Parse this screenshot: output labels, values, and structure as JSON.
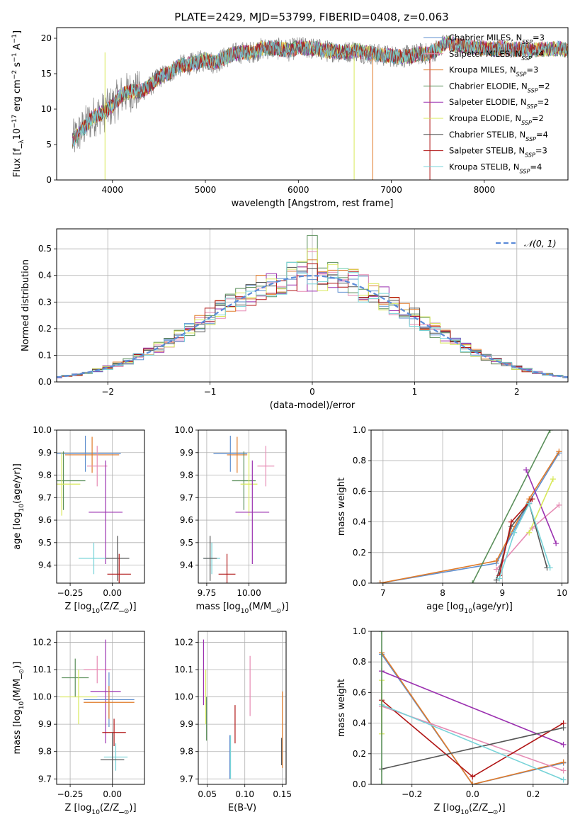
{
  "figure_title": "PLATE=2429, MJD=53799, FIBERID=0408, z=0.063",
  "colors": {
    "Chabrier MILES": "#5f8fcf",
    "Salpeter MILES": "#e68bb4",
    "Kroupa MILES": "#e07b2a",
    "Chabrier ELODIE": "#5a8f5a",
    "Salpeter ELODIE": "#9b30b0",
    "Kroupa ELODIE": "#d8e85a",
    "Chabrier STELIB": "#555555",
    "Salpeter STELIB": "#b01515",
    "Kroupa STELIB": "#77d3d8",
    "data": "#808080",
    "normal": "#5b8bd8"
  },
  "chart_data": [
    {
      "id": "spectrum",
      "type": "line",
      "title": "PLATE=2429, MJD=53799, FIBERID=0408, z=0.063",
      "xlabel": "wavelength [Angstrom, rest frame]",
      "ylabel": "Flux [f$_\\lambda$10$^{-17}$ erg cm$^{-2}$ s$^{-1}$ A$^{-1}$]",
      "xlim": [
        3400,
        8900
      ],
      "ylim": [
        0,
        21.5
      ],
      "xticks": [
        4000,
        5000,
        6000,
        7000,
        8000
      ],
      "yticks": [
        0,
        5,
        10,
        15,
        20
      ],
      "legend_position": "right",
      "legend": [
        {
          "model": "Chabrier MILES",
          "label": "Chabrier MILES, N",
          "sub": "SSP",
          "n": "=3"
        },
        {
          "model": "Salpeter MILES",
          "label": "Salpeter MILES, N",
          "sub": "SSP",
          "n": "=4"
        },
        {
          "model": "Kroupa MILES",
          "label": "Kroupa MILES, N",
          "sub": "SSP",
          "n": "=3"
        },
        {
          "model": "Chabrier ELODIE",
          "label": "Chabrier ELODIE, N",
          "sub": "SSP",
          "n": "=2"
        },
        {
          "model": "Salpeter ELODIE",
          "label": "Salpeter ELODIE, N",
          "sub": "SSP",
          "n": "=2"
        },
        {
          "model": "Kroupa ELODIE",
          "label": "Kroupa ELODIE, N",
          "sub": "SSP",
          "n": "=2"
        },
        {
          "model": "Chabrier STELIB",
          "label": "Chabrier STELIB, N",
          "sub": "SSP",
          "n": "=4"
        },
        {
          "model": "Salpeter STELIB",
          "label": "Salpeter STELIB, N",
          "sub": "SSP",
          "n": "=3"
        },
        {
          "model": "Kroupa STELIB",
          "label": "Kroupa STELIB, N",
          "sub": "SSP",
          "n": "=4"
        }
      ],
      "continuum": {
        "x": [
          3570,
          3700,
          3800,
          3900,
          4000,
          4100,
          4200,
          4300,
          4400,
          4500,
          4600,
          4700,
          4800,
          4900,
          5000,
          5100,
          5200,
          5300,
          5400,
          5500,
          5600,
          5700,
          5800,
          5900,
          6000,
          6100,
          6200,
          6300,
          6400,
          6500,
          6600,
          6700,
          6800,
          6900,
          7000,
          7100,
          7200,
          7300,
          7400,
          7500,
          7600,
          7700,
          7800,
          7900,
          8000,
          8100,
          8200,
          8300,
          8400,
          8500,
          8600,
          8700,
          8800,
          8900
        ],
        "y": [
          5.5,
          7.5,
          9.0,
          9.5,
          10.5,
          12.0,
          12.5,
          12.5,
          13.2,
          14.5,
          15.0,
          16.0,
          16.3,
          16.5,
          17.0,
          16.5,
          17.2,
          17.8,
          18.0,
          18.0,
          18.5,
          18.6,
          18.5,
          18.3,
          18.7,
          18.6,
          18.5,
          18.2,
          18.2,
          18.0,
          18.3,
          18.0,
          17.8,
          17.6,
          17.5,
          17.4,
          17.5,
          17.8,
          17.8,
          18.5,
          19.5,
          19.0,
          18.8,
          18.6,
          18.6,
          18.5,
          18.6,
          18.4,
          18.5,
          18.3,
          18.5,
          18.4,
          18.6,
          18.3
        ]
      }
    },
    {
      "id": "residuals",
      "type": "line",
      "xlabel": "(data-model)/error",
      "ylabel": "Normed distribution",
      "xlim": [
        -2.5,
        2.5
      ],
      "ylim": [
        0,
        0.575
      ],
      "xticks": [
        -2,
        -1,
        0,
        1,
        2
      ],
      "yticks": [
        0.0,
        0.1,
        0.2,
        0.3,
        0.4,
        0.5
      ],
      "grid": true,
      "legend_position": "top-right",
      "normal_label": "𝒩(0, 1)",
      "bin_width": 0.1,
      "peak_values": {
        "Chabrier ELODIE": 0.55,
        "Kroupa ELODIE": 0.5,
        "Salpeter MILES": 0.49
      }
    },
    {
      "id": "age-Z",
      "type": "scatter",
      "xlabel": "Z [log$_{10}$(Z/Z$_\\odot$)]",
      "ylabel": "age  [log$_{10}$(age/yr)]",
      "xlim": [
        -0.33,
        0.19
      ],
      "ylim": [
        9.32,
        10.0
      ],
      "xticks": [
        -0.25,
        0.0
      ],
      "yticks": [
        9.4,
        9.5,
        9.6,
        9.7,
        9.8,
        9.9,
        10.0
      ],
      "grid": true,
      "points": [
        {
          "model": "Chabrier MILES",
          "x": -0.16,
          "y": 9.895,
          "xerr": 0.21,
          "yerr": 0.08
        },
        {
          "model": "Kroupa MILES",
          "x": -0.12,
          "y": 9.89,
          "xerr": 0.16,
          "yerr": 0.08
        },
        {
          "model": "Salpeter MILES",
          "x": -0.09,
          "y": 9.84,
          "xerr": 0.06,
          "yerr": 0.09
        },
        {
          "model": "Chabrier ELODIE",
          "x": -0.29,
          "y": 9.775,
          "xerr": 0.13,
          "yerr": 0.13
        },
        {
          "model": "Kroupa ELODIE",
          "x": -0.3,
          "y": 9.76,
          "xerr": 0.11,
          "yerr": 0.14
        },
        {
          "model": "Salpeter ELODIE",
          "x": -0.04,
          "y": 9.635,
          "xerr": 0.1,
          "yerr": 0.23
        },
        {
          "model": "Kroupa STELIB",
          "x": -0.11,
          "y": 9.43,
          "xerr": 0.09,
          "yerr": 0.07
        },
        {
          "model": "Chabrier STELIB",
          "x": 0.03,
          "y": 9.43,
          "xerr": 0.07,
          "yerr": 0.1
        },
        {
          "model": "Salpeter STELIB",
          "x": 0.04,
          "y": 9.36,
          "xerr": 0.07,
          "yerr": 0.09
        }
      ]
    },
    {
      "id": "age-mass",
      "type": "scatter",
      "xlabel": "mass [log$_{10}$(M/M$_\\odot$)]",
      "ylabel": "",
      "xlim": [
        9.7,
        10.22
      ],
      "ylim": [
        9.32,
        10.0
      ],
      "xticks": [
        9.75,
        10.0
      ],
      "yticks": [
        9.4,
        9.5,
        9.6,
        9.7,
        9.8,
        9.9,
        10.0
      ],
      "grid": true,
      "points": [
        {
          "model": "Chabrier MILES",
          "x": 9.89,
          "y": 9.895,
          "xerr": 0.1,
          "yerr": 0.08
        },
        {
          "model": "Kroupa MILES",
          "x": 9.93,
          "y": 9.89,
          "xerr": 0.06,
          "yerr": 0.08
        },
        {
          "model": "Salpeter MILES",
          "x": 10.1,
          "y": 9.84,
          "xerr": 0.05,
          "yerr": 0.09
        },
        {
          "model": "Chabrier ELODIE",
          "x": 9.97,
          "y": 9.775,
          "xerr": 0.07,
          "yerr": 0.13
        },
        {
          "model": "Kroupa ELODIE",
          "x": 10.0,
          "y": 9.76,
          "xerr": 0.05,
          "yerr": 0.14
        },
        {
          "model": "Salpeter ELODIE",
          "x": 10.02,
          "y": 9.635,
          "xerr": 0.1,
          "yerr": 0.23
        },
        {
          "model": "Kroupa STELIB",
          "x": 9.78,
          "y": 9.43,
          "xerr": 0.05,
          "yerr": 0.07
        },
        {
          "model": "Chabrier STELIB",
          "x": 9.77,
          "y": 9.43,
          "xerr": 0.04,
          "yerr": 0.1
        },
        {
          "model": "Salpeter STELIB",
          "x": 9.87,
          "y": 9.36,
          "xerr": 0.05,
          "yerr": 0.09
        }
      ]
    },
    {
      "id": "weight-age",
      "type": "line",
      "xlabel": "age  [log$_{10}$(age/yr)]",
      "ylabel": "mass weight",
      "xlim": [
        6.8,
        10.1
      ],
      "ylim": [
        0,
        1
      ],
      "xticks": [
        7,
        8,
        9,
        10
      ],
      "yticks": [
        0.0,
        0.2,
        0.4,
        0.6,
        0.8,
        1.0
      ],
      "grid": true,
      "series": [
        {
          "model": "Chabrier MILES",
          "x": [
            6.95,
            8.9,
            9.45,
            9.95
          ],
          "y": [
            0.0,
            0.13,
            0.53,
            0.85
          ]
        },
        {
          "model": "Kroupa MILES",
          "x": [
            6.95,
            8.9,
            9.45,
            9.95
          ],
          "y": [
            0.0,
            0.145,
            0.55,
            0.86
          ]
        },
        {
          "model": "Salpeter MILES",
          "x": [
            8.9,
            9.5,
            9.95
          ],
          "y": [
            0.09,
            0.36,
            0.51
          ]
        },
        {
          "model": "Chabrier ELODIE",
          "x": [
            8.5,
            9.8
          ],
          "y": [
            0.0,
            1.0
          ]
        },
        {
          "model": "Salpeter ELODIE",
          "x": [
            9.4,
            9.9
          ],
          "y": [
            0.74,
            0.26
          ]
        },
        {
          "model": "Kroupa ELODIE",
          "x": [
            9.45,
            9.85
          ],
          "y": [
            0.33,
            0.68
          ]
        },
        {
          "model": "Chabrier STELIB",
          "x": [
            8.9,
            9.15,
            9.45,
            9.75
          ],
          "y": [
            0.02,
            0.37,
            0.52,
            0.1
          ]
        },
        {
          "model": "Salpeter STELIB",
          "x": [
            8.95,
            9.15,
            9.5
          ],
          "y": [
            0.05,
            0.4,
            0.55
          ]
        },
        {
          "model": "Kroupa STELIB",
          "x": [
            8.95,
            9.2,
            9.45,
            9.8
          ],
          "y": [
            0.03,
            0.33,
            0.52,
            0.1
          ]
        }
      ]
    },
    {
      "id": "mass-Z",
      "type": "scatter",
      "xlabel": "Z [log$_{10}$(Z/Z$_\\odot$)]",
      "ylabel": "mass [log$_{10}$(M/M$_\\odot$)]",
      "xlim": [
        -0.33,
        0.19
      ],
      "ylim": [
        9.68,
        10.24
      ],
      "xticks": [
        -0.25,
        0.0
      ],
      "yticks": [
        9.7,
        9.8,
        9.9,
        10.0,
        10.1,
        10.2
      ],
      "grid": true,
      "points": [
        {
          "model": "Salpeter MILES",
          "x": -0.09,
          "y": 10.1,
          "xerr": 0.08,
          "yerr": 0.05
        },
        {
          "model": "Salpeter ELODIE",
          "x": -0.04,
          "y": 10.02,
          "xerr": 0.09,
          "yerr": 0.19
        },
        {
          "model": "Chabrier ELODIE",
          "x": -0.22,
          "y": 10.07,
          "xerr": 0.08,
          "yerr": 0.07
        },
        {
          "model": "Kroupa ELODIE",
          "x": -0.2,
          "y": 10.0,
          "xerr": 0.11,
          "yerr": 0.1
        },
        {
          "model": "Chabrier MILES",
          "x": -0.02,
          "y": 9.99,
          "xerr": 0.15,
          "yerr": 0.1
        },
        {
          "model": "Kroupa MILES",
          "x": -0.02,
          "y": 9.98,
          "xerr": 0.15,
          "yerr": 0.06
        },
        {
          "model": "Salpeter STELIB",
          "x": 0.01,
          "y": 9.87,
          "xerr": 0.07,
          "yerr": 0.05
        },
        {
          "model": "Kroupa STELIB",
          "x": 0.02,
          "y": 9.78,
          "xerr": 0.07,
          "yerr": 0.05
        },
        {
          "model": "Chabrier STELIB",
          "x": 0.0,
          "y": 9.77,
          "xerr": 0.07,
          "yerr": 0.1
        }
      ]
    },
    {
      "id": "mass-ebv",
      "type": "scatter",
      "xlabel": "E(B-V)",
      "ylabel": "",
      "xlim": [
        0.038,
        0.155
      ],
      "ylim": [
        9.68,
        10.24
      ],
      "xticks": [
        0.05,
        0.1,
        0.15
      ],
      "yticks": [
        9.7,
        9.8,
        9.9,
        10.0,
        10.1,
        10.2
      ],
      "grid": true,
      "points": [
        {
          "model": "Salpeter ELODIE",
          "x": 0.045,
          "y": 10.09,
          "yerr": 0.12
        },
        {
          "model": "Kroupa ELODIE",
          "x": 0.048,
          "y": 10.0,
          "yerr": 0.1
        },
        {
          "model": "Chabrier ELODIE",
          "x": 0.049,
          "y": 9.92,
          "yerr": 0.08
        },
        {
          "model": "Chabrier MILES",
          "x": 0.08,
          "y": 9.78,
          "yerr": 0.08
        },
        {
          "model": "Kroupa STELIB",
          "x": 0.081,
          "y": 9.78,
          "yerr": 0.08
        },
        {
          "model": "Salpeter STELIB",
          "x": 0.087,
          "y": 9.9,
          "yerr": 0.07
        },
        {
          "model": "Salpeter MILES",
          "x": 0.107,
          "y": 10.04,
          "yerr": 0.11
        },
        {
          "model": "Kroupa MILES",
          "x": 0.15,
          "y": 9.88,
          "yerr": 0.14
        },
        {
          "model": "Chabrier STELIB",
          "x": 0.149,
          "y": 9.8,
          "yerr": 0.05
        }
      ]
    },
    {
      "id": "weight-Z",
      "type": "line",
      "xlabel": "Z [log$_{10}$(Z/Z$_\\odot$)]",
      "ylabel": "mass weight",
      "xlim": [
        -0.335,
        0.315
      ],
      "ylim": [
        0,
        1
      ],
      "xticks": [
        -0.2,
        0.0,
        0.2
      ],
      "yticks": [
        0.0,
        0.2,
        0.4,
        0.6,
        0.8,
        1.0
      ],
      "grid": true,
      "series": [
        {
          "model": "Chabrier MILES",
          "x": [
            -0.3,
            0.0,
            0.3
          ],
          "y": [
            0.85,
            0.0,
            0.14
          ]
        },
        {
          "model": "Kroupa MILES",
          "x": [
            -0.3,
            0.0,
            0.3
          ],
          "y": [
            0.86,
            0.0,
            0.145
          ]
        },
        {
          "model": "Salpeter MILES",
          "x": [
            -0.3,
            0.3
          ],
          "y": [
            0.51,
            0.09
          ]
        },
        {
          "model": "Salpeter ELODIE",
          "x": [
            -0.3,
            0.3
          ],
          "y": [
            0.74,
            0.26
          ]
        },
        {
          "model": "Salpeter STELIB",
          "x": [
            -0.3,
            0.0,
            0.3
          ],
          "y": [
            0.55,
            0.05,
            0.4
          ]
        },
        {
          "model": "Chabrier STELIB",
          "x": [
            -0.3,
            0.3
          ],
          "y": [
            0.1,
            0.37
          ]
        },
        {
          "model": "Kroupa STELIB",
          "x": [
            -0.3,
            0.3
          ],
          "y": [
            0.52,
            0.03
          ]
        },
        {
          "model": "Kroupa ELODIE",
          "x": [
            -0.3,
            -0.3
          ],
          "y": [
            0.33,
            0.68
          ]
        },
        {
          "model": "Chabrier ELODIE",
          "x": [
            -0.3,
            -0.3
          ],
          "y": [
            0.0,
            1.0
          ]
        }
      ]
    }
  ]
}
